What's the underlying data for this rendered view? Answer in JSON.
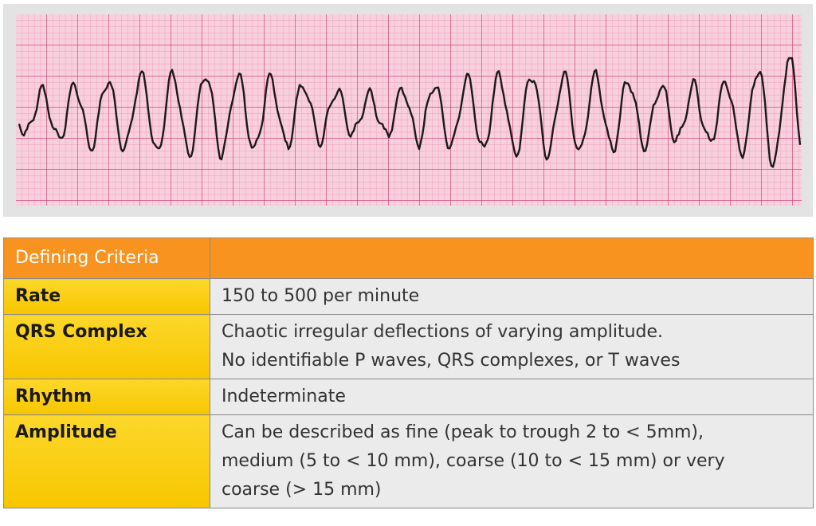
{
  "table": {
    "header": {
      "title": "Defining Criteria"
    },
    "rows": [
      {
        "label": "Rate",
        "text": [
          "150 to 500 per minute"
        ]
      },
      {
        "label": "QRS Complex",
        "text": [
          "Chaotic irregular deflections of varying amplitude.",
          "No identifiable P waves, QRS complexes, or T waves"
        ]
      },
      {
        "label": "Rhythm",
        "text": [
          "Indeterminate"
        ]
      },
      {
        "label": "Amplitude",
        "text": [
          "Can be described as fine (peak to trough 2 to < 5mm),",
          "medium (5 to < 10 mm), coarse (10 to < 15 mm) or very",
          "coarse (> 15 mm)"
        ]
      }
    ]
  }
}
